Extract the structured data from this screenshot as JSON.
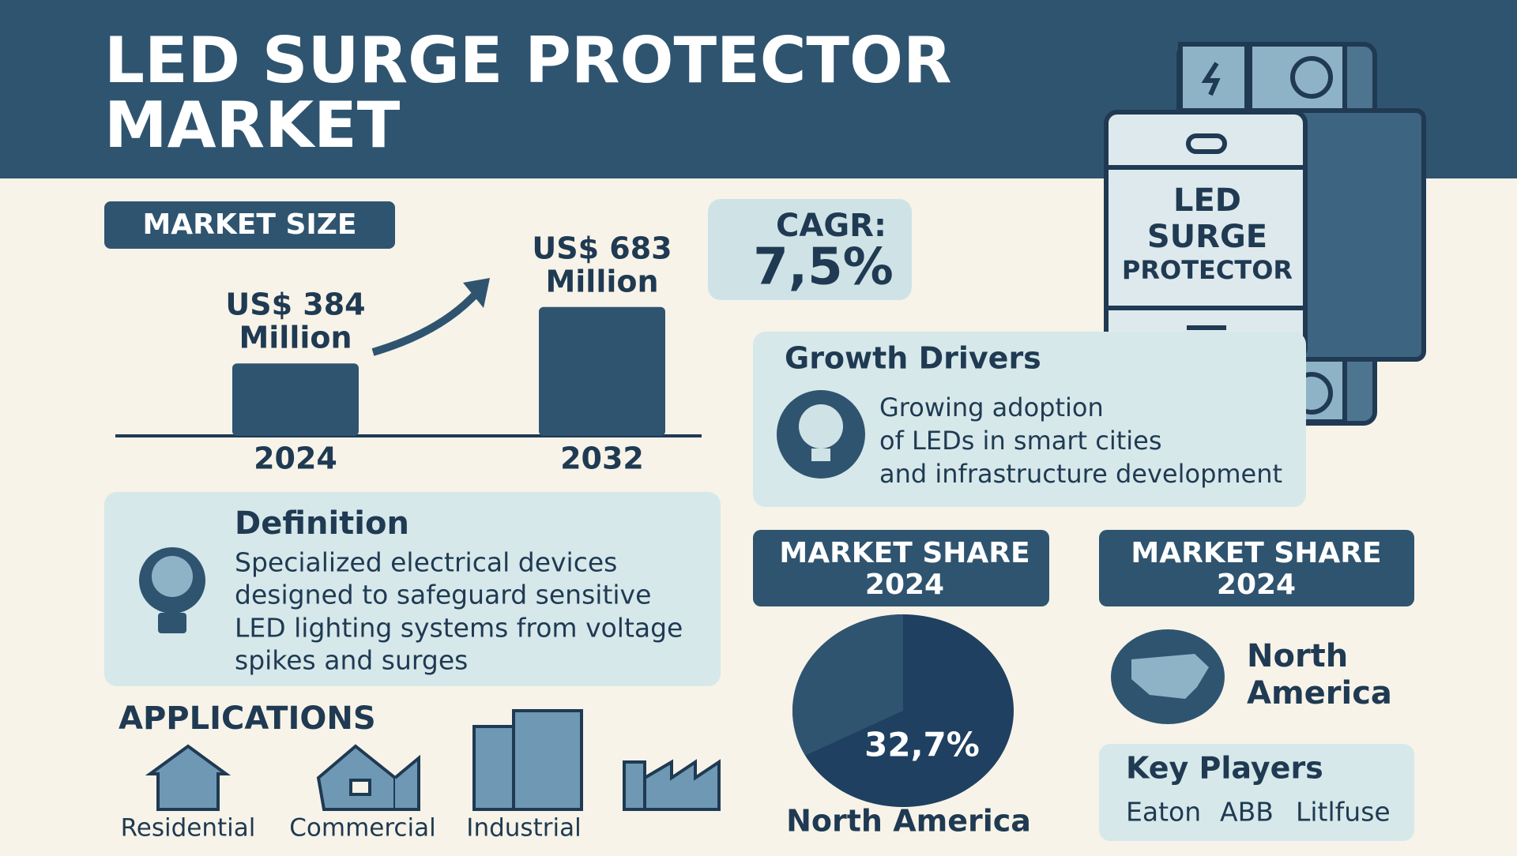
{
  "header": {
    "title_lines": [
      "LED SURGE PROTECTOR",
      "MARKET"
    ]
  },
  "device": {
    "label_lines": [
      "LED",
      "SURGE",
      "PROTECTOR"
    ]
  },
  "market_size": {
    "title": "MARKET SIZE",
    "bars": [
      {
        "year": "2024",
        "value": 384,
        "label_lines": [
          "US$ 384",
          "Million"
        ]
      },
      {
        "year": "2032",
        "value": 683,
        "label_lines": [
          "US$ 683",
          "Million"
        ]
      }
    ]
  },
  "cagr": {
    "label": "CAGR:",
    "value": "7,5%"
  },
  "growth_drivers": {
    "title": "Growth Drivers",
    "lines": [
      "Growing adoption",
      "of LEDs in smart cities",
      "and infrastructure development"
    ]
  },
  "definition": {
    "title": "Definition",
    "lines": [
      "Specialized electrical devices",
      "designed to safeguard sensitive",
      "LED lighting systems from voltage",
      "spikes and surges"
    ]
  },
  "applications": {
    "title": "APPLICATIONS",
    "items": [
      "Residential",
      "Commercial",
      "Industrial"
    ]
  },
  "market_share_pie": {
    "title_lines": [
      "MARKET SHARE",
      "2024"
    ],
    "value": 32.7,
    "value_label": "32,7%",
    "region": "North America"
  },
  "market_share_region": {
    "title_lines": [
      "MARKET SHARE",
      "2024"
    ],
    "region_lines": [
      "North",
      "America"
    ]
  },
  "key_players": {
    "title": "Key Players",
    "players": [
      "Eaton",
      "ABB",
      "Litlfuse"
    ]
  }
}
